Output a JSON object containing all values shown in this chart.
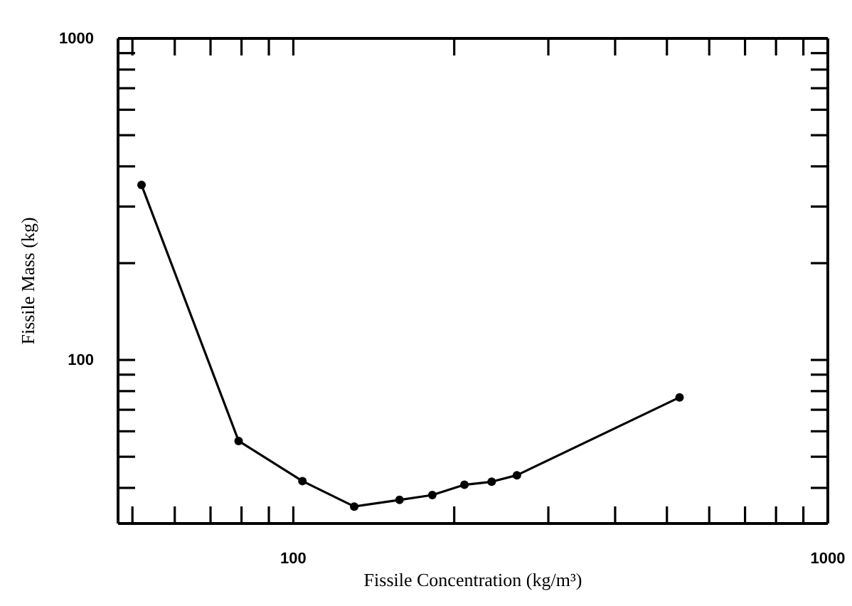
{
  "chart_data": {
    "type": "line",
    "xlabel": "Fissile Concentration (kg/m³)",
    "ylabel": "Fissile Mass (kg)",
    "log": "xy",
    "marker": "circle",
    "line_style": "solid",
    "grid": false,
    "xlim": [
      47,
      1000
    ],
    "ylim": [
      31,
      1000
    ],
    "xticks": [
      {
        "value": 50,
        "label": null
      },
      {
        "value": 60,
        "label": null
      },
      {
        "value": 70,
        "label": null
      },
      {
        "value": 80,
        "label": null
      },
      {
        "value": 90,
        "label": null
      },
      100,
      {
        "value": 200,
        "label": null
      },
      {
        "value": 300,
        "label": null
      },
      {
        "value": 400,
        "label": null
      },
      {
        "value": 500,
        "label": null
      },
      {
        "value": 600,
        "label": null
      },
      {
        "value": 700,
        "label": null
      },
      {
        "value": 800,
        "label": null
      },
      {
        "value": 900,
        "label": null
      },
      1000
    ],
    "yticks": [
      {
        "value": 40,
        "label": null
      },
      {
        "value": 50,
        "label": null
      },
      {
        "value": 60,
        "label": null
      },
      {
        "value": 70,
        "label": null
      },
      {
        "value": 80,
        "label": null
      },
      {
        "value": 90,
        "label": null
      },
      100,
      {
        "value": 200,
        "label": null
      },
      {
        "value": 300,
        "label": null
      },
      {
        "value": 400,
        "label": null
      },
      {
        "value": 500,
        "label": null
      },
      {
        "value": 600,
        "label": null
      },
      {
        "value": 700,
        "label": null
      },
      {
        "value": 800,
        "label": null
      },
      {
        "value": 900,
        "label": null
      },
      1000
    ],
    "x": [
      52,
      79,
      104,
      130,
      158,
      182,
      209,
      235,
      262,
      528
    ],
    "series": [
      {
        "color": "#000000",
        "values": [
          350,
          56,
          42,
          35,
          36.7,
          38,
          40.9,
          41.8,
          43.8,
          76.5
        ]
      }
    ]
  }
}
